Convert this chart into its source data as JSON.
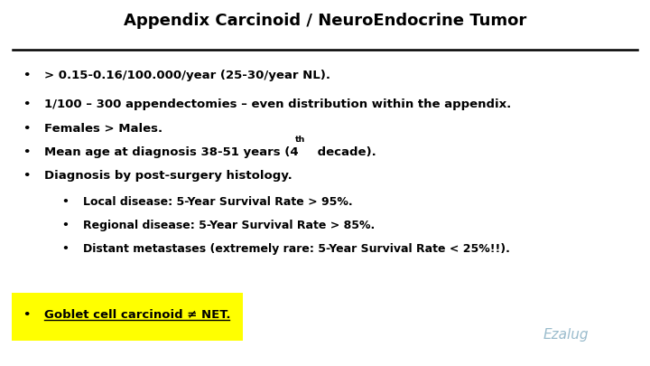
{
  "title": "Appendix Carcinoid / NeuroEndocrine Tumor",
  "bg_color": "#ffffff",
  "title_color": "#000000",
  "title_fontsize": 13,
  "bullet_fontsize": 9.5,
  "sub_bullet_fontsize": 9.0,
  "line_color": "#000000",
  "highlight_color": "#ffff00",
  "highlight_text_color": "#000000",
  "signature_color": "#99bbcc",
  "bullets": [
    "> 0.15-0.16/100.000/year (25-30/year NL).",
    "1/100 – 300 appendectomies – even distribution within the appendix.",
    "Females > Males.",
    "Diagnosis by post-surgery histology."
  ],
  "sub_bullets": [
    "Local disease: 5-Year Survival Rate > 95%.",
    "Regional disease: 5-Year Survival Rate > 85%.",
    "Distant metastases (extremely rare: 5-Year Survival Rate < 25%!!)."
  ],
  "last_bullet": "Goblet cell carcinoid ≠ NET."
}
